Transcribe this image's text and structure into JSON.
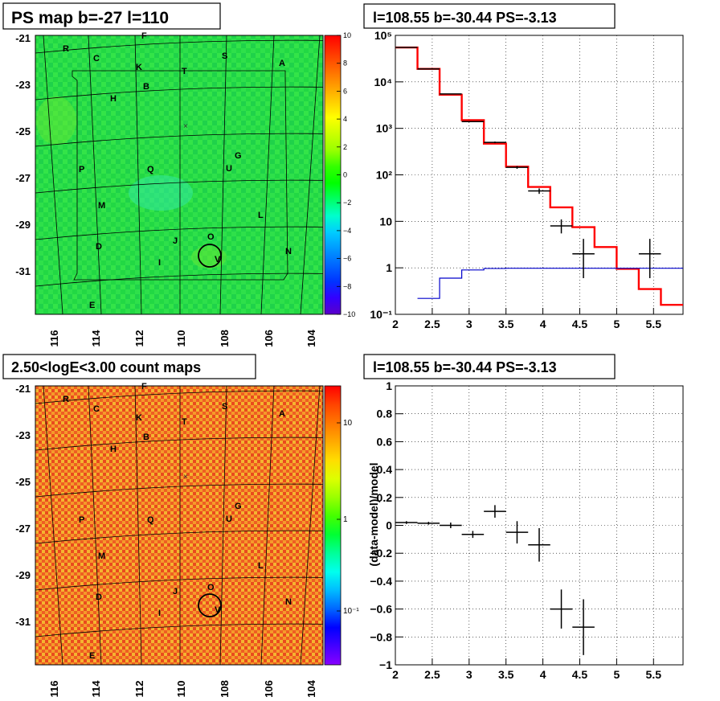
{
  "panels": {
    "map_top": {
      "title": "PS map b=-27 l=110",
      "y_ticks": [
        "-21",
        "-23",
        "-25",
        "-27",
        "-29",
        "-31"
      ],
      "x_ticks": [
        "116",
        "114",
        "112",
        "110",
        "108",
        "106",
        "104"
      ],
      "colorbar_ticks": [
        "10",
        "8",
        "6",
        "4",
        "2",
        "0",
        "−2",
        "−4",
        "−6",
        "−8",
        "−10"
      ],
      "colorbar_range": [
        -10,
        10
      ],
      "colorbar_colors": [
        "#5a00c8",
        "#3300ff",
        "#0033ff",
        "#0066ff",
        "#0099ff",
        "#00ccff",
        "#00ffcc",
        "#00ff66",
        "#00ff00",
        "#33ff00",
        "#99ff00",
        "#ccff00",
        "#ffff00",
        "#ffcc00",
        "#ff9900",
        "#ff6600",
        "#ff3300",
        "#ff0000"
      ],
      "background_color": "#22dd44",
      "labels": [
        "R",
        "F",
        "C",
        "K",
        "T",
        "S",
        "A",
        "B",
        "H",
        "G",
        "P",
        "Q",
        "U",
        "M",
        "L",
        "O",
        "D",
        "J",
        "N",
        "I",
        "V",
        "E"
      ]
    },
    "map_bottom": {
      "title": "2.50<logE<3.00 count maps",
      "y_ticks": [
        "-21",
        "-23",
        "-25",
        "-27",
        "-29",
        "-31"
      ],
      "x_ticks": [
        "116",
        "114",
        "112",
        "110",
        "108",
        "106",
        "104"
      ],
      "colorbar_ticks": [
        "10",
        "1",
        "10⁻¹"
      ],
      "colorbar_scale": "log",
      "colorbar_colors": [
        "#8800ff",
        "#4400ff",
        "#0000ff",
        "#0066ff",
        "#00bbff",
        "#00ffee",
        "#00ff99",
        "#00ff33",
        "#44ff00",
        "#99ff00",
        "#ddff00",
        "#ffdd00",
        "#ffaa00",
        "#ff7700",
        "#ff4400",
        "#ff0000"
      ],
      "background_color": "#f07a28",
      "labels": [
        "R",
        "F",
        "C",
        "K",
        "T",
        "S",
        "A",
        "B",
        "H",
        "G",
        "P",
        "Q",
        "U",
        "M",
        "L",
        "O",
        "D",
        "J",
        "N",
        "I",
        "V",
        "E"
      ]
    }
  },
  "chart_data": [
    {
      "type": "line",
      "title": "l=108.55 b=-30.44 PS=-3.13",
      "xlabel": "",
      "ylabel": "",
      "xlim": [
        2,
        5.9
      ],
      "ylim": [
        0.1,
        100000
      ],
      "yscale": "log",
      "grid": true,
      "x_ticks": [
        "2",
        "2.5",
        "3",
        "3.5",
        "4",
        "4.5",
        "5",
        "5.5"
      ],
      "y_ticks": [
        "10⁻¹",
        "1",
        "10",
        "10²",
        "10³",
        "10⁴",
        "10⁵"
      ],
      "series": [
        {
          "color": "#ff0000",
          "style": "step",
          "edges": [
            2,
            2.3,
            2.6,
            2.9,
            3.2,
            3.5,
            3.8,
            4.1,
            4.4,
            4.7,
            5.0,
            5.3,
            5.6,
            5.9
          ],
          "values": [
            55000,
            19000,
            5300,
            1500,
            470,
            150,
            55,
            20,
            7.5,
            2.8,
            0.95,
            0.35,
            0.16
          ]
        },
        {
          "color": "#0000cc",
          "style": "step",
          "edges": [
            2.3,
            2.6,
            2.9,
            3.2,
            3.5,
            3.8,
            4.1,
            4.4,
            4.7,
            5.0,
            5.3,
            5.6,
            5.9
          ],
          "values": [
            0.22,
            0.6,
            0.9,
            0.97,
            0.98,
            0.98,
            0.98,
            0.98,
            0.98,
            0.98,
            0.98,
            0.98
          ]
        },
        {
          "color": "#000000",
          "style": "points",
          "x": [
            2.15,
            2.45,
            2.75,
            3.05,
            3.35,
            3.65,
            3.95,
            4.25,
            4.55,
            5.45
          ],
          "xerr": [
            0.15,
            0.15,
            0.15,
            0.15,
            0.15,
            0.15,
            0.15,
            0.15,
            0.15,
            0.15
          ],
          "y": [
            55000,
            19000,
            5500,
            1400,
            500,
            145,
            45,
            8,
            2,
            2
          ],
          "ylo": [
            54500,
            18700,
            5420,
            1370,
            480,
            135,
            39,
            5.5,
            0.6,
            0.6
          ],
          "yhi": [
            55500,
            19300,
            5580,
            1430,
            520,
            155,
            51,
            11,
            4.2,
            4.2
          ]
        }
      ]
    },
    {
      "type": "scatter",
      "title": "l=108.55 b=-30.44 PS=-3.13",
      "xlabel": "",
      "ylabel": "(data-model)/model",
      "xlim": [
        2,
        5.9
      ],
      "ylim": [
        -1,
        1
      ],
      "grid": true,
      "x_ticks": [
        "2",
        "2.5",
        "3",
        "3.5",
        "4",
        "4.5",
        "5",
        "5.5"
      ],
      "y_ticks": [
        "1",
        "0.8",
        "0.6",
        "0.4",
        "0.2",
        "0",
        "−0.2",
        "−0.4",
        "−0.6",
        "−0.8",
        "−1"
      ],
      "series": [
        {
          "color": "#000000",
          "x": [
            2.15,
            2.45,
            2.75,
            3.05,
            3.35,
            3.65,
            3.95,
            4.25,
            4.55
          ],
          "xerr": [
            0.15,
            0.15,
            0.15,
            0.15,
            0.15,
            0.15,
            0.15,
            0.15,
            0.15
          ],
          "y": [
            0.02,
            0.015,
            0.0,
            -0.065,
            0.1,
            -0.05,
            -0.14,
            -0.6,
            -0.73
          ],
          "yerr": [
            0.01,
            0.01,
            0.02,
            0.025,
            0.045,
            0.08,
            0.12,
            0.14,
            0.2
          ]
        }
      ]
    }
  ]
}
